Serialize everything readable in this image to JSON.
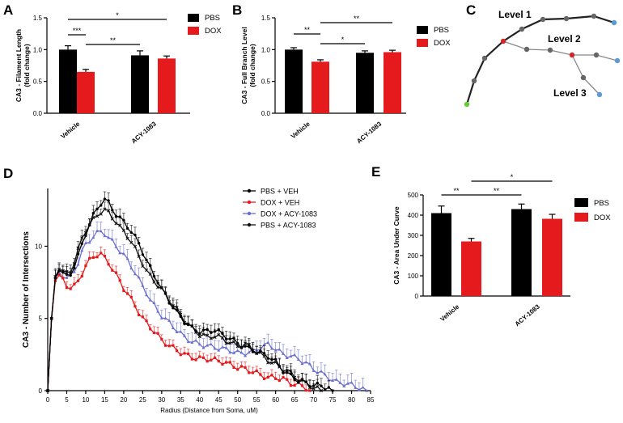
{
  "panels": {
    "A": {
      "label": "A"
    },
    "B": {
      "label": "B"
    },
    "C": {
      "label": "C"
    },
    "D": {
      "label": "D"
    },
    "E": {
      "label": "E"
    }
  },
  "schematic": {
    "level1": "Level 1",
    "level2": "Level 2",
    "level3": "Level 3",
    "colors": {
      "soma": "#66cc33",
      "branch_point": "#d62728",
      "terminal": "#5b9bd5",
      "node": "#666666",
      "main_branch": "#222222",
      "side_branch": "#888888"
    }
  },
  "colors": {
    "pbs": "#000000",
    "dox": "#e41a1c",
    "dox_acy": "#6a6fcf",
    "pbs_acy": "#111111"
  },
  "chart_data": [
    {
      "id": "A",
      "type": "bar",
      "ylabel": "CA3 - Filament Length (fold change)",
      "ylabel_lines": [
        "CA3 - Filament Length",
        "(fold change)"
      ],
      "categories": [
        "Vehicle",
        "ACY-1083"
      ],
      "series": [
        {
          "name": "PBS",
          "color": "#000000",
          "values": [
            1.0,
            0.91
          ],
          "errors": [
            0.06,
            0.07
          ]
        },
        {
          "name": "DOX",
          "color": "#e41a1c",
          "values": [
            0.65,
            0.86
          ],
          "errors": [
            0.04,
            0.04
          ]
        }
      ],
      "ylim": [
        0,
        1.5
      ],
      "yticks": [
        "0.0",
        "0.5",
        "1.0",
        "1.5"
      ],
      "legend": "top-right",
      "significance": [
        {
          "label": "***",
          "from": "Vehicle:PBS",
          "to": "Vehicle:DOX"
        },
        {
          "label": "*",
          "from": "Vehicle:PBS",
          "to": "ACY-1083:DOX"
        },
        {
          "label": "**",
          "from": "Vehicle:DOX",
          "to": "ACY-1083:PBS"
        }
      ]
    },
    {
      "id": "B",
      "type": "bar",
      "ylabel": "CA3 - Full Branch Level (fold change)",
      "ylabel_lines": [
        "CA3 - Full Branch Level",
        "(fold change)"
      ],
      "categories": [
        "Vehicle",
        "ACY-1083"
      ],
      "series": [
        {
          "name": "PBS",
          "color": "#000000",
          "values": [
            1.0,
            0.95
          ],
          "errors": [
            0.03,
            0.03
          ]
        },
        {
          "name": "DOX",
          "color": "#e41a1c",
          "values": [
            0.81,
            0.96
          ],
          "errors": [
            0.03,
            0.03
          ]
        }
      ],
      "ylim": [
        0,
        1.5
      ],
      "yticks": [
        "0.0",
        "0.5",
        "1.0",
        "1.5"
      ],
      "legend": "top-right",
      "significance": [
        {
          "label": "**",
          "from": "Vehicle:PBS",
          "to": "Vehicle:DOX"
        },
        {
          "label": "**",
          "from": "Vehicle:DOX",
          "to": "ACY-1083:DOX"
        },
        {
          "label": "*",
          "from": "Vehicle:DOX",
          "to": "ACY-1083:PBS"
        }
      ]
    },
    {
      "id": "D",
      "type": "line",
      "xlabel": "Radius (Distance from Soma, uM)",
      "ylabel": "CA3 - Number of Intersections",
      "xlim": [
        0,
        85
      ],
      "ylim": [
        0,
        14
      ],
      "xticks": [
        "0",
        "5",
        "10",
        "15",
        "20",
        "25",
        "30",
        "35",
        "40",
        "45",
        "50",
        "55",
        "60",
        "65",
        "70",
        "75",
        "80",
        "85"
      ],
      "yticks": [
        "0",
        "5",
        "10"
      ],
      "legend": "top-right",
      "series": [
        {
          "name": "PBS + VEH",
          "color": "#000000",
          "marker": "circle",
          "end": 75,
          "keys": [
            [
              0,
              0
            ],
            [
              1,
              5
            ],
            [
              2,
              7.8
            ],
            [
              3,
              8.3
            ],
            [
              4,
              8.1
            ],
            [
              5,
              7.9
            ],
            [
              6,
              8.1
            ],
            [
              7,
              8.6
            ],
            [
              8,
              9.3
            ],
            [
              9,
              10.1
            ],
            [
              10,
              10.9
            ],
            [
              11,
              11.5
            ],
            [
              12,
              12.1
            ],
            [
              13,
              12.6
            ],
            [
              14,
              13.0
            ],
            [
              15,
              13.2
            ],
            [
              16,
              13.0
            ],
            [
              17,
              12.6
            ],
            [
              18,
              12.2
            ],
            [
              19,
              11.9
            ],
            [
              20,
              11.7
            ],
            [
              21,
              11.4
            ],
            [
              22,
              11.0
            ],
            [
              23,
              10.6
            ],
            [
              24,
              10.2
            ],
            [
              25,
              9.6
            ],
            [
              26,
              9.0
            ],
            [
              27,
              8.5
            ],
            [
              28,
              8.0
            ],
            [
              29,
              7.6
            ],
            [
              30,
              7.0
            ],
            [
              32,
              6.2
            ],
            [
              34,
              5.4
            ],
            [
              36,
              4.8
            ],
            [
              38,
              4.3
            ],
            [
              40,
              4.1
            ],
            [
              42,
              4.1
            ],
            [
              44,
              4.2
            ],
            [
              46,
              3.9
            ],
            [
              48,
              3.6
            ],
            [
              50,
              3.3
            ],
            [
              52,
              3.0
            ],
            [
              54,
              2.8
            ],
            [
              56,
              2.6
            ],
            [
              58,
              2.4
            ],
            [
              60,
              2.0
            ],
            [
              62,
              1.4
            ],
            [
              64,
              1.0
            ],
            [
              66,
              0.7
            ],
            [
              68,
              0.5
            ],
            [
              70,
              0.4
            ],
            [
              72,
              0.3
            ],
            [
              74,
              0.2
            ],
            [
              75,
              0
            ]
          ],
          "err": 0.55
        },
        {
          "name": "DOX + VEH",
          "color": "#e41a1c",
          "marker": "square",
          "end": 69,
          "keys": [
            [
              0,
              0
            ],
            [
              1,
              5
            ],
            [
              2,
              7.6
            ],
            [
              3,
              8.0
            ],
            [
              4,
              7.7
            ],
            [
              5,
              7.3
            ],
            [
              6,
              7.1
            ],
            [
              7,
              7.2
            ],
            [
              8,
              7.6
            ],
            [
              9,
              8.1
            ],
            [
              10,
              8.6
            ],
            [
              11,
              9.0
            ],
            [
              12,
              9.3
            ],
            [
              13,
              9.4
            ],
            [
              14,
              9.4
            ],
            [
              15,
              9.2
            ],
            [
              16,
              8.9
            ],
            [
              17,
              8.4
            ],
            [
              18,
              8.0
            ],
            [
              19,
              7.6
            ],
            [
              20,
              7.1
            ],
            [
              21,
              6.7
            ],
            [
              22,
              6.3
            ],
            [
              23,
              5.9
            ],
            [
              24,
              5.4
            ],
            [
              25,
              5.0
            ],
            [
              26,
              4.7
            ],
            [
              27,
              4.4
            ],
            [
              28,
              4.1
            ],
            [
              29,
              3.8
            ],
            [
              30,
              3.5
            ],
            [
              32,
              3.1
            ],
            [
              34,
              2.8
            ],
            [
              36,
              2.5
            ],
            [
              38,
              2.3
            ],
            [
              40,
              2.2
            ],
            [
              42,
              2.2
            ],
            [
              44,
              2.1
            ],
            [
              46,
              2.0
            ],
            [
              48,
              1.8
            ],
            [
              50,
              1.6
            ],
            [
              52,
              1.5
            ],
            [
              54,
              1.3
            ],
            [
              56,
              1.1
            ],
            [
              58,
              0.9
            ],
            [
              60,
              0.9
            ],
            [
              62,
              0.8
            ],
            [
              64,
              0.5
            ],
            [
              66,
              0.4
            ],
            [
              68,
              0.2
            ],
            [
              69,
              0
            ]
          ],
          "err": 0.45
        },
        {
          "name": "DOX + ACY-1083",
          "color": "#6a6fcf",
          "marker": "triangle",
          "end": 84,
          "keys": [
            [
              0,
              0
            ],
            [
              1,
              5
            ],
            [
              2,
              7.8
            ],
            [
              3,
              8.2
            ],
            [
              4,
              8.0
            ],
            [
              5,
              7.8
            ],
            [
              6,
              7.9
            ],
            [
              7,
              8.3
            ],
            [
              8,
              8.9
            ],
            [
              9,
              9.6
            ],
            [
              10,
              10.1
            ],
            [
              11,
              10.4
            ],
            [
              12,
              10.7
            ],
            [
              13,
              10.9
            ],
            [
              14,
              11.0
            ],
            [
              15,
              10.9
            ],
            [
              16,
              10.6
            ],
            [
              17,
              10.3
            ],
            [
              18,
              10.0
            ],
            [
              19,
              9.7
            ],
            [
              20,
              9.4
            ],
            [
              21,
              9.0
            ],
            [
              22,
              8.6
            ],
            [
              23,
              8.2
            ],
            [
              24,
              7.7
            ],
            [
              25,
              7.2
            ],
            [
              26,
              6.8
            ],
            [
              27,
              6.3
            ],
            [
              28,
              5.9
            ],
            [
              29,
              5.5
            ],
            [
              30,
              5.2
            ],
            [
              32,
              4.7
            ],
            [
              34,
              4.2
            ],
            [
              36,
              3.7
            ],
            [
              38,
              3.4
            ],
            [
              40,
              3.2
            ],
            [
              42,
              3.1
            ],
            [
              44,
              3.0
            ],
            [
              46,
              2.9
            ],
            [
              48,
              2.8
            ],
            [
              50,
              2.6
            ],
            [
              52,
              2.6
            ],
            [
              54,
              2.7
            ],
            [
              56,
              3.0
            ],
            [
              58,
              3.2
            ],
            [
              60,
              2.9
            ],
            [
              62,
              2.5
            ],
            [
              64,
              2.4
            ],
            [
              66,
              2.2
            ],
            [
              68,
              1.9
            ],
            [
              70,
              1.5
            ],
            [
              72,
              1.2
            ],
            [
              74,
              0.9
            ],
            [
              76,
              0.6
            ],
            [
              78,
              0.5
            ],
            [
              80,
              0.4
            ],
            [
              82,
              0.2
            ],
            [
              84,
              0
            ]
          ],
          "err": 0.65
        },
        {
          "name": "PBS + ACY-1083",
          "color": "#111111",
          "marker": "x",
          "end": 72,
          "keys": [
            [
              0,
              0
            ],
            [
              1,
              5
            ],
            [
              2,
              7.9
            ],
            [
              3,
              8.4
            ],
            [
              4,
              8.2
            ],
            [
              5,
              8.1
            ],
            [
              6,
              8.3
            ],
            [
              7,
              8.9
            ],
            [
              8,
              9.7
            ],
            [
              9,
              10.5
            ],
            [
              10,
              11.1
            ],
            [
              11,
              11.5
            ],
            [
              12,
              11.8
            ],
            [
              13,
              12.1
            ],
            [
              14,
              12.4
            ],
            [
              15,
              12.5
            ],
            [
              16,
              12.3
            ],
            [
              17,
              12.0
            ],
            [
              18,
              11.7
            ],
            [
              19,
              11.3
            ],
            [
              20,
              11.0
            ],
            [
              21,
              10.7
            ],
            [
              22,
              10.3
            ],
            [
              23,
              9.8
            ],
            [
              24,
              9.3
            ],
            [
              25,
              8.8
            ],
            [
              26,
              8.3
            ],
            [
              27,
              7.9
            ],
            [
              28,
              7.6
            ],
            [
              29,
              7.3
            ],
            [
              30,
              7.0
            ],
            [
              32,
              6.3
            ],
            [
              34,
              5.6
            ],
            [
              36,
              4.9
            ],
            [
              38,
              4.3
            ],
            [
              40,
              3.9
            ],
            [
              42,
              3.7
            ],
            [
              44,
              3.8
            ],
            [
              46,
              3.6
            ],
            [
              48,
              3.3
            ],
            [
              50,
              3.1
            ],
            [
              52,
              3.2
            ],
            [
              54,
              2.9
            ],
            [
              56,
              2.5
            ],
            [
              58,
              2.1
            ],
            [
              60,
              1.8
            ],
            [
              62,
              1.5
            ],
            [
              64,
              1.2
            ],
            [
              66,
              0.8
            ],
            [
              68,
              0.5
            ],
            [
              70,
              0.2
            ],
            [
              72,
              0
            ]
          ],
          "err": 0.55
        }
      ]
    },
    {
      "id": "E",
      "type": "bar",
      "ylabel": "CA3 - Area Under Curve",
      "categories": [
        "Vehicle",
        "ACY-1083"
      ],
      "series": [
        {
          "name": "PBS",
          "color": "#000000",
          "values": [
            410,
            430
          ],
          "errors": [
            35,
            25
          ]
        },
        {
          "name": "DOX",
          "color": "#e41a1c",
          "values": [
            270,
            382
          ],
          "errors": [
            15,
            22
          ]
        }
      ],
      "ylim": [
        0,
        500
      ],
      "yticks": [
        "0",
        "100",
        "200",
        "300",
        "400",
        "500"
      ],
      "legend": "right",
      "significance": [
        {
          "label": "**",
          "from": "Vehicle:PBS",
          "to": "Vehicle:DOX"
        },
        {
          "label": "**",
          "from": "Vehicle:DOX",
          "to": "ACY-1083:PBS"
        },
        {
          "label": "*",
          "from": "Vehicle:DOX",
          "to": "ACY-1083:DOX"
        }
      ]
    }
  ]
}
